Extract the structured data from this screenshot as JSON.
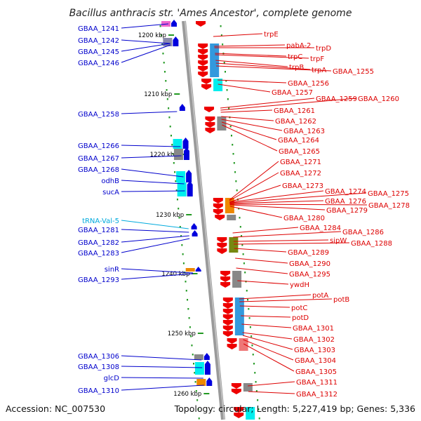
{
  "title": "Bacillus anthracis str. 'Ames Ancestor', complete genome",
  "footer": {
    "accession": "Accession: NC_007530",
    "summary": "Topology: circular; Length: 5,227,419 bp; Genes: 5,336"
  },
  "colors": {
    "backbone": "#8a8a8a",
    "forward_gene": "#0000dd",
    "reverse_gene": "#ee0000",
    "left_label": "#0000cc",
    "right_label": "#dd0000",
    "trna": "#00aadd",
    "tick": "#229922",
    "cds_highlight_blue": "#3399dd",
    "cds_highlight_cyan": "#00eeee",
    "cds_grey": "#888888",
    "cds_olive": "#778811",
    "cds_lime": "#99dd33",
    "cds_orange": "#ee8800",
    "cds_salmon": "#ee7777"
  },
  "scale_ticks": [
    {
      "label": "1200 kbp"
    },
    {
      "label": "1210 kbp"
    },
    {
      "label": "1220 kbp"
    },
    {
      "label": "1230 kbp"
    },
    {
      "label": "1240 kbp"
    },
    {
      "label": "1250 kbp"
    },
    {
      "label": "1260 kbp"
    }
  ],
  "left_genes": [
    {
      "name": "GBAA_1241",
      "strand": "forward"
    },
    {
      "name": "GBAA_1242",
      "strand": "forward"
    },
    {
      "name": "GBAA_1245",
      "strand": "forward"
    },
    {
      "name": "GBAA_1246",
      "strand": "forward"
    },
    {
      "name": "GBAA_1258",
      "strand": "forward"
    },
    {
      "name": "GBAA_1266",
      "strand": "forward"
    },
    {
      "name": "GBAA_1267",
      "strand": "forward"
    },
    {
      "name": "GBAA_1268",
      "strand": "forward"
    },
    {
      "name": "odhB",
      "strand": "forward"
    },
    {
      "name": "sucA",
      "strand": "forward"
    },
    {
      "name": "tRNA-Val-5",
      "strand": "forward",
      "type": "trna"
    },
    {
      "name": "GBAA_1281",
      "strand": "forward"
    },
    {
      "name": "GBAA_1282",
      "strand": "forward"
    },
    {
      "name": "GBAA_1283",
      "strand": "forward"
    },
    {
      "name": "sinR",
      "strand": "forward"
    },
    {
      "name": "GBAA_1293",
      "strand": "forward"
    },
    {
      "name": "GBAA_1306",
      "strand": "forward"
    },
    {
      "name": "GBAA_1308",
      "strand": "forward"
    },
    {
      "name": "glcD",
      "strand": "forward"
    },
    {
      "name": "GBAA_1310",
      "strand": "forward"
    }
  ],
  "right_genes": [
    {
      "name": "trpE"
    },
    {
      "name": "pabA-2"
    },
    {
      "name": "trpD"
    },
    {
      "name": "trpC"
    },
    {
      "name": "trpF"
    },
    {
      "name": "trpB"
    },
    {
      "name": "trpA"
    },
    {
      "name": "GBAA_1255"
    },
    {
      "name": "GBAA_1256"
    },
    {
      "name": "GBAA_1257"
    },
    {
      "name": "GBAA_1259"
    },
    {
      "name": "GBAA_1260"
    },
    {
      "name": "GBAA_1261"
    },
    {
      "name": "GBAA_1262"
    },
    {
      "name": "GBAA_1263"
    },
    {
      "name": "GBAA_1264"
    },
    {
      "name": "GBAA_1265"
    },
    {
      "name": "GBAA_1271"
    },
    {
      "name": "GBAA_1272"
    },
    {
      "name": "GBAA_1273"
    },
    {
      "name": "GBAA_1274"
    },
    {
      "name": "GBAA_1275"
    },
    {
      "name": "GBAA_1276"
    },
    {
      "name": "GBAA_1278"
    },
    {
      "name": "GBAA_1279"
    },
    {
      "name": "GBAA_1280"
    },
    {
      "name": "GBAA_1284"
    },
    {
      "name": "GBAA_1286"
    },
    {
      "name": "sipW"
    },
    {
      "name": "GBAA_1288"
    },
    {
      "name": "GBAA_1289"
    },
    {
      "name": "GBAA_1290"
    },
    {
      "name": "GBAA_1295"
    },
    {
      "name": "ywdH"
    },
    {
      "name": "potA"
    },
    {
      "name": "potB"
    },
    {
      "name": "potC"
    },
    {
      "name": "potD"
    },
    {
      "name": "GBAA_1301"
    },
    {
      "name": "GBAA_1302"
    },
    {
      "name": "GBAA_1303"
    },
    {
      "name": "GBAA_1304"
    },
    {
      "name": "GBAA_1305"
    },
    {
      "name": "GBAA_1311"
    },
    {
      "name": "GBAA_1312"
    }
  ]
}
